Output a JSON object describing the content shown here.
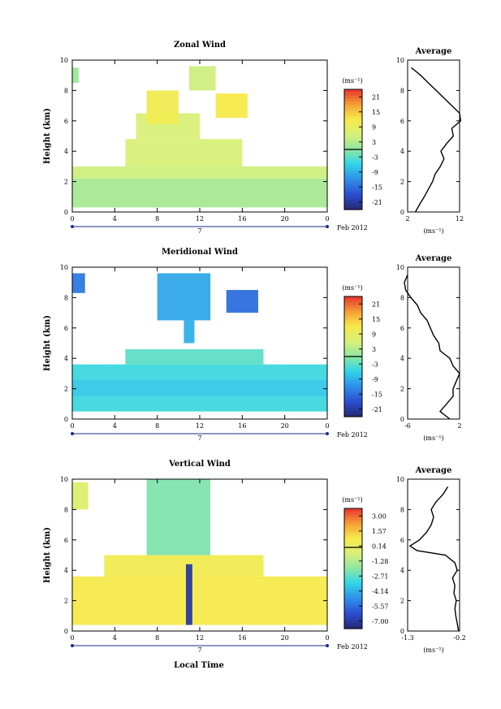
{
  "figure": {
    "xlabel": "Local Time",
    "date_label": "Feb 2012",
    "day_label": "7",
    "average_title": "Average",
    "units_label": "(ms⁻¹)",
    "avg_units_label": "(ms⁻¹)"
  },
  "chart_data": [
    {
      "type": "heatmap",
      "title": "Zonal Wind",
      "ylabel": "Height (km)",
      "xticks": [
        "0",
        "4",
        "8",
        "12",
        "16",
        "20",
        "0"
      ],
      "ylim": [
        0,
        10
      ],
      "yticks": [
        "0",
        "2",
        "4",
        "6",
        "8",
        "10"
      ],
      "colorbar": {
        "label": "(ms⁻¹)",
        "ticks": [
          "21",
          "15",
          "9",
          "3",
          "-3",
          "-9",
          "-15",
          "-21"
        ],
        "range": [
          -24,
          24
        ]
      },
      "regions": [
        {
          "t0": 0,
          "t1": 24,
          "h0": 0.3,
          "h1": 2.2,
          "value": 2
        },
        {
          "t0": 0,
          "t1": 24,
          "h0": 2.2,
          "h1": 3.0,
          "value": 5
        },
        {
          "t0": 5,
          "t1": 16,
          "h0": 3.0,
          "h1": 4.8,
          "value": 6
        },
        {
          "t0": 6,
          "t1": 12,
          "h0": 4.8,
          "h1": 6.5,
          "value": 6
        },
        {
          "t0": 7,
          "t1": 10,
          "h0": 5.8,
          "h1": 8.0,
          "value": 11
        },
        {
          "t0": 11,
          "t1": 13.5,
          "h0": 8.0,
          "h1": 9.6,
          "value": 5
        },
        {
          "t0": 13.5,
          "t1": 16.5,
          "h0": 6.2,
          "h1": 7.8,
          "value": 12
        },
        {
          "t0": 0,
          "t1": 0.6,
          "h0": 8.5,
          "h1": 9.5,
          "value": 1
        }
      ],
      "average": {
        "xlim": [
          2,
          12
        ],
        "xticks": [
          "2",
          "12"
        ],
        "profile_h": [
          0,
          0.5,
          1,
          1.5,
          2,
          2.5,
          3,
          3.5,
          4,
          4.5,
          5,
          5.5,
          6,
          6.5,
          7,
          7.5,
          8,
          8.5,
          9,
          9.5
        ],
        "profile_v": [
          3.5,
          4.3,
          5.2,
          6.0,
          6.8,
          7.3,
          8.3,
          9.0,
          8.4,
          9.5,
          10.8,
          10.5,
          12.2,
          12.0,
          10.5,
          9.0,
          7.5,
          6.0,
          4.5,
          2.7
        ]
      }
    },
    {
      "type": "heatmap",
      "title": "Meridional Wind",
      "ylabel": "Height (km)",
      "xticks": [
        "0",
        "4",
        "8",
        "12",
        "16",
        "20",
        "0"
      ],
      "ylim": [
        0,
        10
      ],
      "yticks": [
        "0",
        "2",
        "4",
        "6",
        "8",
        "10"
      ],
      "colorbar": {
        "label": "(ms⁻¹)",
        "ticks": [
          "21",
          "15",
          "9",
          "3",
          "-3",
          "-9",
          "-15",
          "-21"
        ],
        "range": [
          -24,
          24
        ]
      },
      "regions": [
        {
          "t0": 0,
          "t1": 24,
          "h0": 0.5,
          "h1": 1.5,
          "value": -5
        },
        {
          "t0": 0,
          "t1": 24,
          "h0": 1.5,
          "h1": 2.6,
          "value": -7
        },
        {
          "t0": 0,
          "t1": 24,
          "h0": 2.6,
          "h1": 3.6,
          "value": -5
        },
        {
          "t0": 5,
          "t1": 18,
          "h0": 3.6,
          "h1": 4.6,
          "value": -3
        },
        {
          "t0": 8,
          "t1": 13,
          "h0": 6.5,
          "h1": 9.6,
          "value": -10
        },
        {
          "t0": 14.5,
          "t1": 17.5,
          "h0": 7.0,
          "h1": 8.5,
          "value": -15
        },
        {
          "t0": 0,
          "t1": 1.2,
          "h0": 8.3,
          "h1": 9.6,
          "value": -14
        },
        {
          "t0": 10.5,
          "t1": 11.5,
          "h0": 5.0,
          "h1": 6.5,
          "value": -9
        }
      ],
      "average": {
        "xlim": [
          -6,
          2
        ],
        "xticks": [
          "-6",
          "2"
        ],
        "profile_h": [
          0,
          0.5,
          1,
          1.5,
          2,
          2.5,
          3,
          3.5,
          4,
          4.5,
          5,
          5.5,
          6,
          6.5,
          7,
          7.5,
          8,
          8.5,
          9,
          9.5
        ],
        "profile_v": [
          0.5,
          -1.0,
          0.0,
          1.0,
          1.0,
          1.5,
          2.0,
          1.0,
          0.5,
          -1.0,
          -1.2,
          -2.0,
          -2.5,
          -3.0,
          -4.0,
          -4.5,
          -5.5,
          -6.3,
          -6.5,
          -6.0
        ]
      }
    },
    {
      "type": "heatmap",
      "title": "Vertical Wind",
      "ylabel": "Height (km)",
      "xticks": [
        "0",
        "4",
        "8",
        "12",
        "16",
        "20",
        "0"
      ],
      "ylim": [
        0,
        10
      ],
      "yticks": [
        "0",
        "2",
        "4",
        "6",
        "8",
        "10"
      ],
      "colorbar": {
        "label": "(ms⁻¹)",
        "ticks": [
          "3.00",
          "1.57",
          "0.14",
          "-1.28",
          "-2.71",
          "-4.14",
          "-5.57",
          "-7.00"
        ],
        "range": [
          -7.7,
          3.7
        ]
      },
      "regions": [
        {
          "t0": 0,
          "t1": 24,
          "h0": 0.4,
          "h1": 3.6,
          "value": 0.8
        },
        {
          "t0": 3,
          "t1": 18,
          "h0": 3.6,
          "h1": 5.0,
          "value": 0.6
        },
        {
          "t0": 7,
          "t1": 13,
          "h0": 5.0,
          "h1": 10,
          "value": -2.2
        },
        {
          "t0": 0,
          "t1": 1.5,
          "h0": 8.0,
          "h1": 9.8,
          "value": -0.3
        },
        {
          "t0": 10.7,
          "t1": 11.3,
          "h0": 0.4,
          "h1": 4.4,
          "value": -7.0
        }
      ],
      "average": {
        "xlim": [
          -1.3,
          -0.2
        ],
        "xticks": [
          "-1.3",
          "-0.2"
        ],
        "profile_h": [
          0,
          0.5,
          1,
          1.5,
          2,
          2.5,
          3,
          3.5,
          4,
          4.5,
          5,
          5.3,
          5.6,
          6,
          6.5,
          7,
          7.5,
          8,
          8.5,
          9,
          9.5
        ],
        "profile_v": [
          -0.22,
          -0.25,
          -0.28,
          -0.3,
          -0.27,
          -0.32,
          -0.3,
          -0.35,
          -0.25,
          -0.3,
          -0.5,
          -1.1,
          -1.25,
          -1.05,
          -0.9,
          -0.8,
          -0.75,
          -0.8,
          -0.7,
          -0.55,
          -0.45
        ]
      }
    }
  ]
}
